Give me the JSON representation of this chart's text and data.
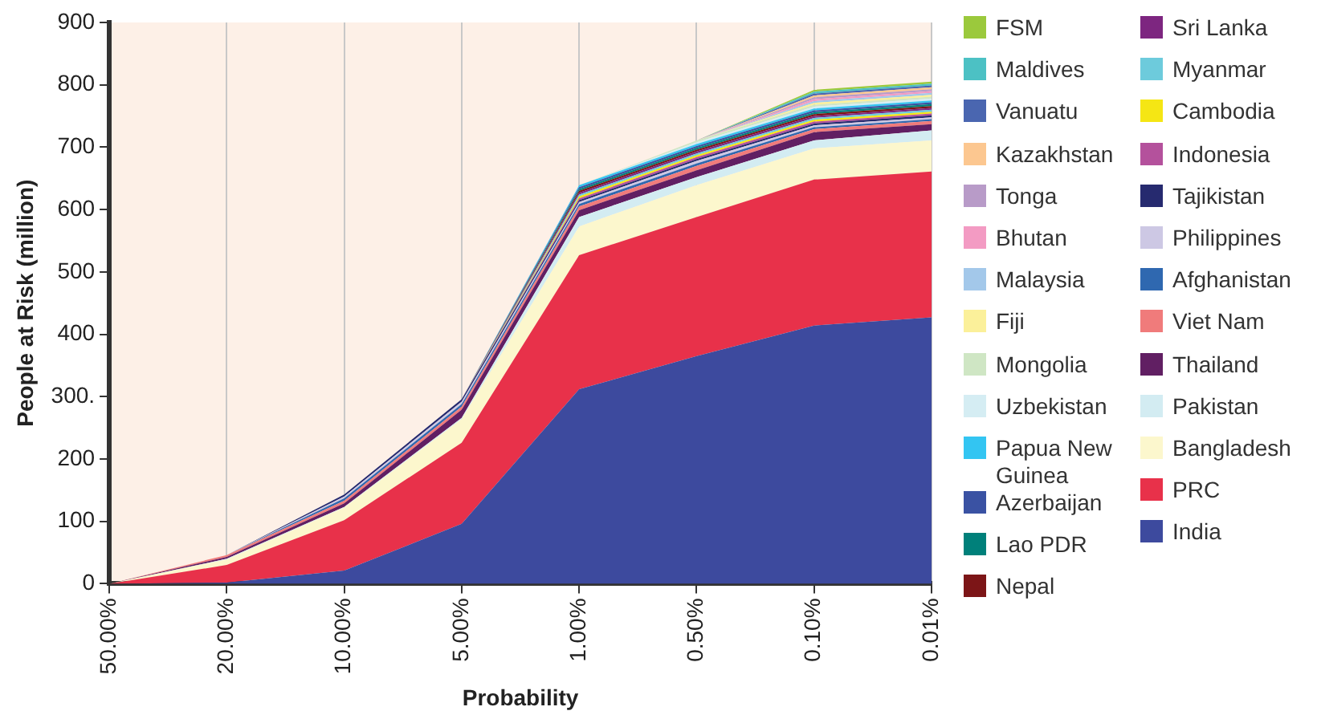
{
  "chart_data": {
    "type": "area",
    "stacked": true,
    "xlabel": "Probability",
    "ylabel": "People at Risk (million)",
    "categories": [
      "50.00%",
      "20.00%",
      "10.00%",
      "5.00%",
      "1.00%",
      "0.50%",
      "0.10%",
      "0.01%"
    ],
    "ylim": [
      0,
      900
    ],
    "yticks": [
      0,
      100,
      200,
      {
        "value": 300,
        "label": "300."
      },
      400,
      500,
      600,
      700,
      800,
      900
    ],
    "grid": "x",
    "legend": "right",
    "series": [
      {
        "name": "India",
        "color": "#3d4a9e",
        "values": [
          0,
          2,
          21,
          96,
          312,
          365,
          414,
          427
        ]
      },
      {
        "name": "PRC",
        "color": "#e8314a",
        "values": [
          0,
          28,
          81,
          130,
          215,
          223,
          234,
          234
        ]
      },
      {
        "name": "Bangladesh",
        "color": "#fcf7cd",
        "values": [
          0,
          9,
          20,
          38,
          46,
          51,
          50,
          50
        ]
      },
      {
        "name": "Pakistan",
        "color": "#d3ecf2",
        "values": [
          0,
          1,
          1,
          2,
          15,
          13,
          13,
          16
        ]
      },
      {
        "name": "Thailand",
        "color": "#611f63",
        "values": [
          0,
          3,
          6,
          13,
          11,
          11,
          13,
          10
        ]
      },
      {
        "name": "Viet Nam",
        "color": "#f07b7b",
        "values": [
          0,
          3,
          4,
          5,
          6,
          7,
          5,
          5
        ]
      },
      {
        "name": "Afghanistan",
        "color": "#2f68b0",
        "values": [
          0,
          0,
          4,
          4,
          4,
          4,
          3,
          3
        ]
      },
      {
        "name": "Philippines",
        "color": "#cdc8e4",
        "values": [
          0,
          0,
          3,
          4,
          3,
          4,
          3,
          3
        ]
      },
      {
        "name": "Tajikistan",
        "color": "#262a6f",
        "values": [
          0,
          0,
          3,
          4,
          3,
          3,
          3,
          3
        ]
      },
      {
        "name": "Indonesia",
        "color": "#b4519c",
        "values": [
          0,
          0,
          0,
          0,
          3,
          3,
          3,
          3
        ]
      },
      {
        "name": "Cambodia",
        "color": "#f5e614",
        "values": [
          0,
          0,
          0,
          0,
          3,
          3,
          3,
          3
        ]
      },
      {
        "name": "Myanmar",
        "color": "#6dcbdc",
        "values": [
          0,
          0,
          0,
          0,
          3,
          3,
          3,
          3
        ]
      },
      {
        "name": "Sri Lanka",
        "color": "#7d2680",
        "values": [
          0,
          0,
          0,
          0,
          3,
          3,
          3,
          3
        ]
      },
      {
        "name": "Nepal",
        "color": "#7c1517",
        "values": [
          0,
          0,
          0,
          0,
          3,
          3,
          3,
          3
        ]
      },
      {
        "name": "Lao PDR",
        "color": "#00807a",
        "values": [
          0,
          0,
          0,
          0,
          3,
          3,
          3,
          3
        ]
      },
      {
        "name": "Azerbaijan",
        "color": "#3a52a3",
        "values": [
          0,
          0,
          0,
          0,
          3,
          3,
          3,
          3
        ]
      },
      {
        "name": "Papua New Guinea",
        "color": "#33c5f2",
        "values": [
          0,
          0,
          0,
          0,
          3,
          3,
          3,
          3
        ]
      },
      {
        "name": "Uzbekistan",
        "color": "#d5edf3",
        "values": [
          0,
          0,
          0,
          0,
          0,
          3,
          3,
          3
        ]
      },
      {
        "name": "Mongolia",
        "color": "#cfe6c4",
        "values": [
          0,
          0,
          0,
          0,
          0,
          3,
          3,
          3
        ]
      },
      {
        "name": "Fiji",
        "color": "#fbf09a",
        "values": [
          0,
          0,
          0,
          0,
          0,
          0,
          3,
          3
        ]
      },
      {
        "name": "Malaysia",
        "color": "#a3c8ea",
        "values": [
          0,
          0,
          0,
          0,
          0,
          0,
          3,
          3
        ]
      },
      {
        "name": "Bhutan",
        "color": "#f39bc3",
        "values": [
          0,
          0,
          0,
          0,
          0,
          0,
          3,
          3
        ]
      },
      {
        "name": "Tonga",
        "color": "#b89bc8",
        "values": [
          0,
          0,
          0,
          0,
          0,
          0,
          3,
          3
        ]
      },
      {
        "name": "Kazakhstan",
        "color": "#fcc790",
        "values": [
          0,
          0,
          0,
          0,
          0,
          0,
          3,
          3
        ]
      },
      {
        "name": "Vanuatu",
        "color": "#4a66b0",
        "values": [
          0,
          0,
          0,
          0,
          0,
          0,
          3,
          3
        ]
      },
      {
        "name": "Maldives",
        "color": "#4cc1c4",
        "values": [
          0,
          0,
          0,
          0,
          0,
          0,
          3,
          3
        ]
      },
      {
        "name": "FSM",
        "color": "#9bc93c",
        "values": [
          0,
          0,
          0,
          0,
          0,
          0,
          3,
          3
        ]
      }
    ]
  }
}
